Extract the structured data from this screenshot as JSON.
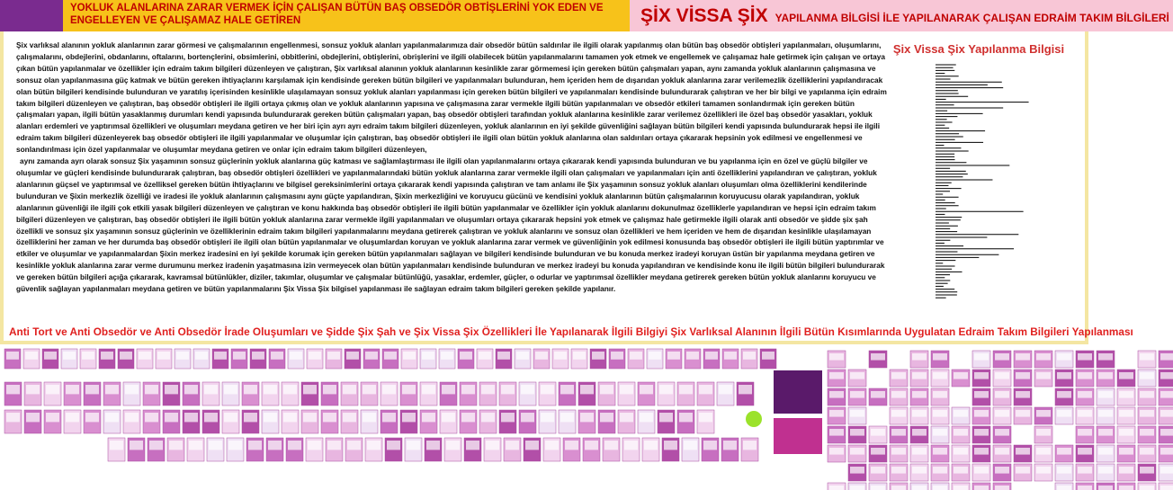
{
  "header": {
    "left_title": "YOKLUK ALANLARINA ZARAR VERMEK İÇİN ÇALIŞAN BÜTÜN BAŞ OBSEDÖR OBTİŞLERİNİ YOK EDEN VE ENGELLEYEN VE ÇALIŞAMAZ HALE GETİREN",
    "right_title_big": "ŞİX VİSSA ŞİX",
    "right_title": "YAPILANMA BİLGİSİ İLE YAPILANARAK ÇALIŞAN EDRAİM TAKIM BİLGİLERİ"
  },
  "body": {
    "paragraphs": [
      "Şix varlıksal alanının yokluk alanlarının zarar görmesi ve çalışmalarının engellenmesi, sonsuz yokluk alanları yapılanmalarımıza dair obsedör bütün saldırılar ile ilgili olarak yapılanmış olan bütün baş obsedör obtişleri yapılanmaları, oluşumlarını, çalışmalarını, obdejlerini, obdanlarını, oftalarını, bortençlerini, obsimlerini, obbitlerini, obdejlerini, obtişlerini, obrişlerini ve ilgili olabilecek bütün yapılanmalarını tamamen yok etmek ve engellemek ve çalışamaz hale getirmek için çalışan ve ortaya çıkan bütün yapılanmalar ve özellikler için edraim takım bilgileri düzenleyen ve çalıştıran, Şix varlıksal alanının yokluk alanlarının kesinlikle zarar görmemesi için gereken bütün çalışmaları yapan, aynı zamanda yokluk alanlarının çalışmasına ve sonsuz olan yapılanmasına güç katmak ve bütün gereken ihtiyaçlarını karşılamak için kendisinde gereken bütün bilgileri ve yapılanmaları bulunduran, hem içeriden hem de dışarıdan yokluk alanlarına zarar verilemezlik özelliklerini yapılandıracak olan bütün bilgileri kendisinde bulunduran ve yaratılış içerisinden kesinlikle ulaşılamayan sonsuz yokluk alanları yapılanması için gereken bütün bilgileri ve yapılanmaları kendisinde bulundurarak çalıştıran ve her bir bilgi ve yapılanma için edraim takım bilgileri düzenleyen ve çalıştıran, baş obsedör obtişleri ile ilgili ortaya çıkmış olan ve yokluk alanlarının yapısına ve çalışmasına zarar vermekle ilgili bütün yapılanmaları ve obsedör etkileri tamamen sonlandırmak için gereken bütün çalışmaları yapan, ilgili bütün yasaklanmış durumları kendi yapısında bulundurarak gereken bütün çalışmaları yapan, baş obsedör obtişleri tarafından yokluk alanlarına kesinlikle zarar verilemez özellikleri ile özel baş obsedör yasakları, yokluk alanları erdemleri ve yaptırımsal özellikleri ve oluşumları meydana getiren ve her biri için ayrı ayrı edraim takım bilgileri düzenleyen, yokluk alanlarının en iyi şekilde güvenliğini sağlayan bütün bilgileri kendi yapısında bulundurarak hepsi ile ilgili edraim takım bilgileri düzenleyerek baş obsedör obtişleri ile ilgili yapılanmalar ve oluşumlar için çalıştıran, baş obsedör obtişleri ile ilgili olan bütün yokluk alanlarına olan saldırıları ortaya çıkararak hepsinin yok edilmesi ve engellenmesi ve sonlandırılması için özel yapılanmalar ve oluşumlar meydana getiren ve onlar için edraim takım bilgileri düzenleyen,",
      "aynı zamanda ayrı olarak sonsuz Şix yaşamının sonsuz güçlerinin yokluk alanlarına güç katması ve sağlamlaştırması ile ilgili olan yapılanmalarını ortaya çıkararak kendi yapısında bulunduran ve bu yapılanma için en özel ve güçlü bilgiler ve oluşumlar ve güçleri kendisinde bulundurarak çalıştıran, baş obsedör obtişleri özellikleri ve yapılanmalarındaki bütün yokluk alanlarına zarar vermekle ilgili olan çalışmaları ve yapılanmaları için anti özelliklerini yapılandıran ve çalıştıran, yokluk alanlarının güçsel ve yaptırımsal ve özelliksel gereken bütün ihtiyaçlarını ve bilgisel gereksinimlerini ortaya çıkararak kendi yapısında çalıştıran ve tam anlamı ile Şix yaşamının sonsuz yokluk alanları oluşumları olma özelliklerini kendilerinde bulunduran ve Şixin merkezlik özelliği ve iradesi ile yokluk alanlarının çalışmasını aynı güçte yapılandıran, Şixin merkezliğini ve koruyucu gücünü ve kendisini yokluk alanlarının bütün çalışmalarının koruyucusu olarak yapılandıran, yokluk alanlarının güvenliği ile ilgili çok etkili yasak bilgileri düzenleyen ve çalıştıran ve konu hakkında baş obsedör obtişleri ile ilgili bütün yapılanmalar ve özellikler için yokluk alanlarını dokunulmaz özelliklerle yapılandıran ve hepsi için edraim takım bilgileri düzenleyen ve çalıştıran, baş obsedör obtişleri ile ilgili bütün yokluk alanlarına zarar vermekle ilgili yapılanmaları ve oluşumları ortaya çıkararak hepsini yok etmek ve çalışmaz hale getirmekle ilgili olarak anti obsedör ve şidde şix şah özellikli ve sonsuz şix yaşamının sonsuz güçlerinin ve özelliklerinin edraim takım bilgileri yapılanmalarını meydana getirerek çalıştıran ve yokluk alanlarını ve sonsuz olan özellikleri ve hem içeriden ve hem de dışarıdan kesinlikle ulaşılamayan özelliklerini her zaman ve her durumda baş obsedör obtişleri ile ilgili olan bütün yapılanmalar ve oluşumlardan koruyan ve yokluk alanlarına zarar vermek ve güvenliğinin yok edilmesi konusunda baş obsedör obtişleri ile ilgili bütün yaptırımlar ve etkiler ve oluşumlar ve yapılanmalardan Şixin merkez iradesini en iyi şekilde korumak için gereken bütün yapılanmaları sağlayan ve bilgileri kendisinde bulunduran ve bu konuda merkez iradeyi koruyan üstün bir yapılanma meydana getiren ve kesinlikle yokluk alanlarına zarar verme durumunu merkez iradenin yaşatmasına izin vermeyecek olan bütün yapılanmaları kendisinde bulunduran ve merkez iradeyi bu konuda yapılandıran ve kendisinde konu ile ilgili bütün bilgileri bulundurarak ve gereken bütün bilgileri açığa çıkararak, kavramsal bütünlükler, diziler, takımlar, oluşumlar ve çalışmalar bütünlüğü, yasaklar, erdemler, güçler, o odurlar ve yaptırımsal özellikler meydana getirerek gereken bütün yokluk alanlarını koruyucu ve güvenlik sağlayan yapılanmaları meydana getiren ve bütün yapılanmalarını Şix Vissa Şix bilgisel yapılanması ile sağlayan edraim takım bilgileri gereken şekilde yapılanır."
    ]
  },
  "sidebar": {
    "title": "Şix Vissa Şix Yapılanma Bilgisi"
  },
  "footer_caption": "Anti Tort ve Anti Obsedör ve Anti Obsedör İrade Oluşumları ve Şidde Şix Şah ve Şix Vissa Şix Özellikleri İle Yapılanarak İlgili Bilgiyi Şix Varlıksal Alanının İlgili Bütün Kısımlarında Uygulatan Edraim Takım Bilgileri Yapılanması"
}
